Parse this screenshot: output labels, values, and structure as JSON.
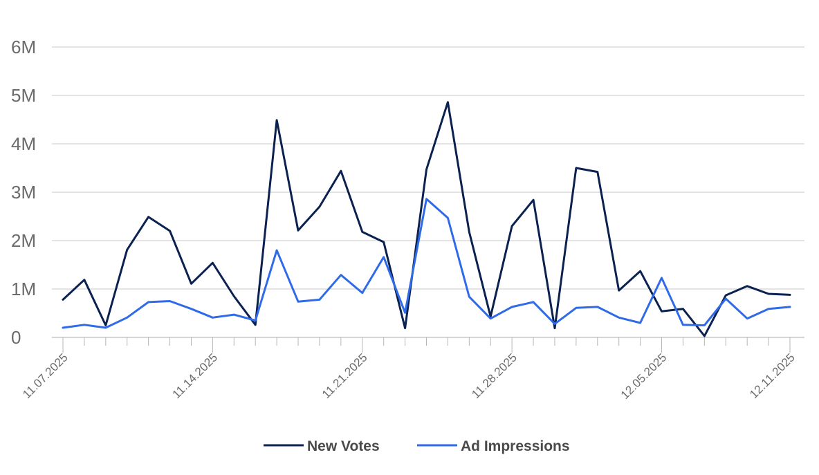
{
  "chart_data": {
    "type": "line",
    "x": [
      "11.07.2025",
      "11.08.2025",
      "11.09.2025",
      "11.10.2025",
      "11.11.2025",
      "11.12.2025",
      "11.13.2025",
      "11.14.2025",
      "11.15.2025",
      "11.16.2025",
      "11.17.2025",
      "11.18.2025",
      "11.19.2025",
      "11.20.2025",
      "11.21.2025",
      "11.22.2025",
      "11.23.2025",
      "11.24.2025",
      "11.25.2025",
      "11.26.2025",
      "11.27.2025",
      "11.28.2025",
      "11.29.2025",
      "11.30.2025",
      "12.01.2025",
      "12.02.2025",
      "12.03.2025",
      "12.04.2025",
      "12.05.2025",
      "12.06.2025",
      "12.07.2025",
      "12.08.2025",
      "12.09.2025",
      "12.10.2025",
      "12.11.2025"
    ],
    "x_tick_labels": [
      "11.07.2025",
      "11.14.2025",
      "11.21.2025",
      "11.28.2025",
      "12.05.2025",
      "12.11.2025"
    ],
    "y_tick_labels": [
      "0",
      "1M",
      "2M",
      "3M",
      "4M",
      "5M",
      "6M"
    ],
    "ylim": [
      0,
      6000000
    ],
    "grid": true,
    "legend_position": "bottom-center",
    "series": [
      {
        "name": "New Votes",
        "color": "#0b2150",
        "values": [
          780000,
          1190000,
          250000,
          1810000,
          2490000,
          2200000,
          1110000,
          1540000,
          850000,
          260000,
          4490000,
          2210000,
          2700000,
          3440000,
          2180000,
          1970000,
          190000,
          3470000,
          4860000,
          2180000,
          430000,
          2300000,
          2840000,
          190000,
          3500000,
          3420000,
          970000,
          1370000,
          540000,
          590000,
          30000,
          870000,
          1060000,
          900000,
          880000
        ]
      },
      {
        "name": "Ad Impressions",
        "color": "#2f6be8",
        "values": [
          200000,
          260000,
          200000,
          410000,
          730000,
          750000,
          590000,
          410000,
          470000,
          350000,
          1800000,
          740000,
          780000,
          1290000,
          920000,
          1660000,
          510000,
          2860000,
          2470000,
          840000,
          390000,
          630000,
          730000,
          280000,
          610000,
          630000,
          410000,
          300000,
          1230000,
          260000,
          250000,
          800000,
          390000,
          590000,
          630000
        ]
      }
    ]
  }
}
